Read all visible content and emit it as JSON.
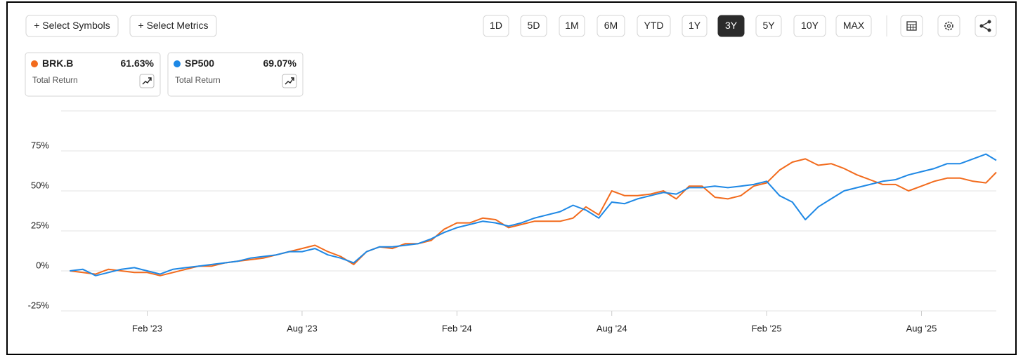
{
  "toolbar": {
    "actions": [
      "+ Select Symbols",
      "+ Select Metrics"
    ],
    "ranges": [
      "1D",
      "5D",
      "1M",
      "6M",
      "YTD",
      "1Y",
      "3Y",
      "5Y",
      "10Y",
      "MAX"
    ],
    "active_range": 6
  },
  "cards": [
    {
      "return": "61.63%",
      "label": "Total Return"
    },
    {
      "return": "69.07%",
      "label": "Total Return"
    }
  ],
  "chart_data": {
    "type": "line",
    "x": [
      -2,
      -1.5,
      -1,
      -0.5,
      0,
      0.5,
      1,
      1.5,
      2,
      2.5,
      3,
      3.5,
      4,
      4.5,
      5,
      5.5,
      6,
      6.5,
      7,
      7.5,
      8,
      8.5,
      9,
      9.5,
      10,
      10.5,
      11,
      11.5,
      12,
      12.5,
      13,
      13.5,
      14,
      14.5,
      15,
      15.5,
      16,
      16.5,
      17,
      17.5,
      18,
      18.5,
      19,
      19.5,
      20,
      20.5,
      21,
      21.5,
      22,
      22.5,
      23,
      23.5,
      24,
      24.5,
      25,
      25.5,
      26,
      26.5,
      27,
      27.5,
      28,
      28.5,
      29,
      29.5,
      30,
      30.5,
      31,
      31.5,
      32,
      32.5,
      33,
      33.5,
      33.9
    ],
    "series": [
      {
        "name": "BRK.B",
        "color": "#f26b1d",
        "values": [
          0,
          -1,
          -2,
          1,
          0,
          -1,
          -1,
          -3,
          -1,
          1,
          3,
          3,
          5,
          6,
          7,
          8,
          10,
          12,
          14,
          16,
          12,
          9,
          4,
          12,
          15,
          14,
          17,
          17,
          19,
          26,
          30,
          30,
          33,
          32,
          27,
          29,
          31,
          31,
          31,
          33,
          40,
          35,
          50,
          47,
          47,
          48,
          50,
          45,
          53,
          53,
          46,
          45,
          47,
          53,
          55,
          63,
          68,
          70,
          66,
          67,
          64,
          60,
          57,
          54,
          54,
          50,
          53,
          56,
          58,
          58,
          56,
          55,
          61.63
        ]
      },
      {
        "name": "SP500",
        "color": "#1e88e5",
        "values": [
          0,
          1,
          -3,
          -1,
          1,
          2,
          0,
          -2,
          1,
          2,
          3,
          4,
          5,
          6,
          8,
          9,
          10,
          12,
          12,
          14,
          10,
          8,
          5,
          12,
          15,
          15,
          16,
          17,
          20,
          24,
          27,
          29,
          31,
          30,
          28,
          30,
          33,
          35,
          37,
          41,
          38,
          33,
          43,
          42,
          45,
          47,
          49,
          48,
          52,
          52,
          53,
          52,
          53,
          54,
          56,
          47,
          43,
          32,
          40,
          45,
          50,
          52,
          54,
          56,
          57,
          60,
          62,
          64,
          67,
          67,
          70,
          73,
          69.07
        ]
      }
    ],
    "xlim": [
      -2.2,
      33.9
    ],
    "xticks": [
      {
        "value": 1,
        "label": "Feb '23"
      },
      {
        "value": 7,
        "label": "Aug '23"
      },
      {
        "value": 13,
        "label": "Feb '24"
      },
      {
        "value": 19,
        "label": "Aug '24"
      },
      {
        "value": 25,
        "label": "Feb '25"
      },
      {
        "value": 31,
        "label": "Aug '25"
      }
    ],
    "ylim": [
      -25,
      100
    ],
    "yticks": [
      {
        "value": -25,
        "label": "-25%"
      },
      {
        "value": 0,
        "label": "0%"
      },
      {
        "value": 25,
        "label": "25%"
      },
      {
        "value": 50,
        "label": "50%"
      },
      {
        "value": 75,
        "label": "75%"
      }
    ],
    "grid": true
  }
}
